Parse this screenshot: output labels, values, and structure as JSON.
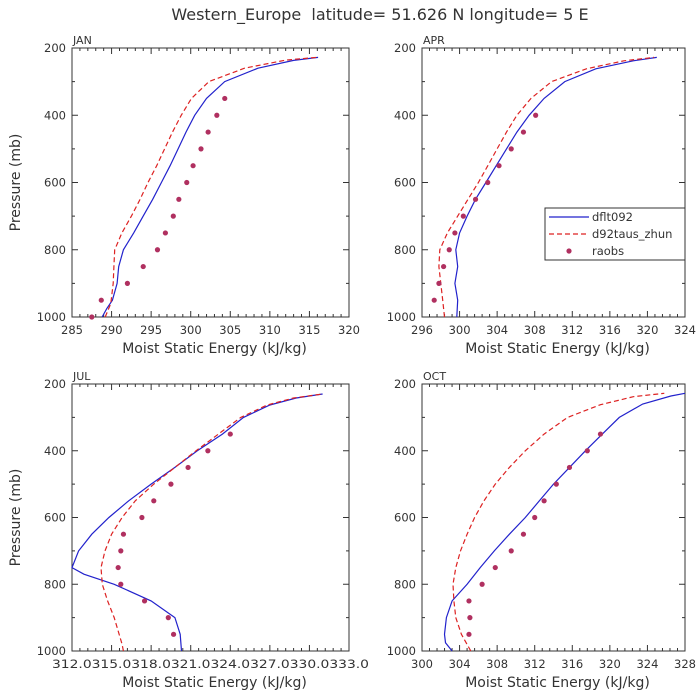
{
  "figure": {
    "title": "Western_Europe  latitude= 51.626 N longitude= 5 E"
  },
  "chart_data": [
    {
      "type": "line",
      "panel": "JAN",
      "xlabel": "Moist Static Energy (kJ/kg)",
      "ylabel": "Pressure (mb)",
      "xlim": [
        285,
        320
      ],
      "ylim": [
        1000,
        200
      ],
      "x_ticks": [
        "285",
        "290",
        "295",
        "300",
        "305",
        "310",
        "315",
        "320"
      ],
      "y_ticks": [
        "200",
        "400",
        "600",
        "800",
        "1000"
      ],
      "series": [
        {
          "name": "dflt092",
          "color": "#2222cc",
          "style": "solid",
          "points": [
            [
              288.8,
              1000
            ],
            [
              289.4,
              975
            ],
            [
              290.1,
              950
            ],
            [
              290.7,
              900
            ],
            [
              290.9,
              850
            ],
            [
              291.5,
              800
            ],
            [
              292.8,
              750
            ],
            [
              294.0,
              700
            ],
            [
              295.2,
              650
            ],
            [
              296.3,
              600
            ],
            [
              297.4,
              550
            ],
            [
              298.4,
              500
            ],
            [
              299.4,
              450
            ],
            [
              300.5,
              400
            ],
            [
              302.0,
              350
            ],
            [
              304.3,
              300
            ],
            [
              308.5,
              260
            ],
            [
              313.0,
              237
            ],
            [
              316.1,
              228
            ]
          ]
        },
        {
          "name": "d92taus_zhun",
          "color": "#dd2222",
          "style": "dashed",
          "points": [
            [
              289.2,
              1000
            ],
            [
              289.9,
              960
            ],
            [
              290.2,
              900
            ],
            [
              290.3,
              850
            ],
            [
              290.4,
              800
            ],
            [
              291.3,
              750
            ],
            [
              292.5,
              700
            ],
            [
              293.6,
              650
            ],
            [
              294.6,
              600
            ],
            [
              295.7,
              550
            ],
            [
              296.7,
              500
            ],
            [
              297.7,
              450
            ],
            [
              298.8,
              400
            ],
            [
              300.1,
              350
            ],
            [
              302.3,
              300
            ],
            [
              306.8,
              260
            ],
            [
              312.0,
              236
            ],
            [
              315.9,
              228
            ]
          ]
        }
      ],
      "raobs": {
        "name": "raobs",
        "color": "#b03060",
        "points": [
          [
            287.5,
            1000
          ],
          [
            288.7,
            950
          ],
          [
            292.0,
            900
          ],
          [
            294.0,
            850
          ],
          [
            295.8,
            800
          ],
          [
            296.8,
            750
          ],
          [
            297.8,
            700
          ],
          [
            298.5,
            650
          ],
          [
            299.5,
            600
          ],
          [
            300.3,
            550
          ],
          [
            301.3,
            500
          ],
          [
            302.2,
            450
          ],
          [
            303.3,
            400
          ],
          [
            304.3,
            350
          ]
        ]
      }
    },
    {
      "type": "line",
      "panel": "APR",
      "xlabel": "Moist Static Energy (kJ/kg)",
      "ylabel": "Pressure (mb)",
      "xlim": [
        296,
        324
      ],
      "ylim": [
        1000,
        200
      ],
      "x_ticks": [
        "296",
        "300",
        "304",
        "308",
        "312",
        "316",
        "320",
        "324"
      ],
      "y_ticks": [
        "200",
        "400",
        "600",
        "800",
        "1000"
      ],
      "legend": {
        "placement": "right",
        "entries": [
          "dflt092",
          "d92taus_zhun",
          "raobs"
        ]
      },
      "series": [
        {
          "name": "dflt092",
          "color": "#2222cc",
          "style": "solid",
          "points": [
            [
              299.7,
              1000
            ],
            [
              299.8,
              950
            ],
            [
              299.5,
              900
            ],
            [
              299.8,
              850
            ],
            [
              299.6,
              800
            ],
            [
              300.0,
              750
            ],
            [
              300.8,
              700
            ],
            [
              301.7,
              650
            ],
            [
              302.8,
              600
            ],
            [
              303.9,
              550
            ],
            [
              305.0,
              500
            ],
            [
              306.1,
              450
            ],
            [
              307.4,
              400
            ],
            [
              309.0,
              350
            ],
            [
              311.2,
              300
            ],
            [
              314.5,
              262
            ],
            [
              318.5,
              238
            ],
            [
              321.0,
              228
            ]
          ]
        },
        {
          "name": "d92taus_zhun",
          "color": "#dd2222",
          "style": "dashed",
          "points": [
            [
              298.4,
              1000
            ],
            [
              298.2,
              950
            ],
            [
              298.0,
              900
            ],
            [
              297.8,
              850
            ],
            [
              297.9,
              800
            ],
            [
              298.7,
              750
            ],
            [
              299.8,
              700
            ],
            [
              300.9,
              650
            ],
            [
              302.0,
              600
            ],
            [
              303.0,
              550
            ],
            [
              304.0,
              500
            ],
            [
              305.0,
              450
            ],
            [
              306.1,
              400
            ],
            [
              307.6,
              350
            ],
            [
              309.8,
              300
            ],
            [
              313.5,
              262
            ],
            [
              317.5,
              238
            ],
            [
              320.7,
              228
            ]
          ]
        }
      ],
      "raobs": {
        "name": "raobs",
        "color": "#b03060",
        "points": [
          [
            297.3,
            950
          ],
          [
            297.8,
            900
          ],
          [
            298.3,
            850
          ],
          [
            298.9,
            800
          ],
          [
            299.5,
            750
          ],
          [
            300.4,
            700
          ],
          [
            301.7,
            650
          ],
          [
            303.0,
            600
          ],
          [
            304.2,
            550
          ],
          [
            305.5,
            500
          ],
          [
            306.8,
            450
          ],
          [
            308.1,
            400
          ]
        ]
      }
    },
    {
      "type": "line",
      "panel": "JUL",
      "xlabel": "Moist Static Energy (kJ/kg)",
      "ylabel": "Pressure (mb)",
      "xlim": [
        312.0,
        333.0
      ],
      "ylim": [
        1000,
        200
      ],
      "x_ticks": [
        "312.0",
        "315.0",
        "318.0",
        "321.0",
        "324.0",
        "327.0",
        "330.0",
        "333.0"
      ],
      "x_tick_text": "312.0315.0318.0321.0324.0327.0330.0333.0",
      "y_ticks": [
        "200",
        "400",
        "600",
        "800",
        "1000"
      ],
      "series": [
        {
          "name": "dflt092",
          "color": "#2222cc",
          "style": "solid",
          "points": [
            [
              320.3,
              1000
            ],
            [
              320.2,
              950
            ],
            [
              319.8,
              900
            ],
            [
              318.0,
              850
            ],
            [
              315.2,
              800
            ],
            [
              312.9,
              770
            ],
            [
              312.0,
              750
            ],
            [
              312.5,
              700
            ],
            [
              313.5,
              650
            ],
            [
              314.8,
              600
            ],
            [
              316.3,
              550
            ],
            [
              318.0,
              500
            ],
            [
              319.8,
              450
            ],
            [
              321.5,
              400
            ],
            [
              323.4,
              350
            ],
            [
              325.0,
              300
            ],
            [
              327.0,
              263
            ],
            [
              329.0,
              242
            ],
            [
              331.0,
              230
            ]
          ]
        },
        {
          "name": "d92taus_zhun",
          "color": "#dd2222",
          "style": "dashed",
          "points": [
            [
              315.9,
              1000
            ],
            [
              315.8,
              980
            ],
            [
              315.2,
              900
            ],
            [
              314.7,
              850
            ],
            [
              314.3,
              800
            ],
            [
              314.2,
              750
            ],
            [
              314.5,
              700
            ],
            [
              315.0,
              650
            ],
            [
              315.8,
              600
            ],
            [
              316.8,
              550
            ],
            [
              318.2,
              500
            ],
            [
              319.8,
              450
            ],
            [
              321.4,
              400
            ],
            [
              323.1,
              350
            ],
            [
              324.8,
              300
            ],
            [
              326.8,
              263
            ],
            [
              328.8,
              242
            ],
            [
              331.0,
              230
            ]
          ]
        }
      ],
      "raobs": {
        "name": "raobs",
        "color": "#b03060",
        "points": [
          [
            319.7,
            950
          ],
          [
            319.3,
            900
          ],
          [
            317.5,
            850
          ],
          [
            315.7,
            800
          ],
          [
            315.5,
            750
          ],
          [
            315.7,
            700
          ],
          [
            315.9,
            650
          ],
          [
            317.3,
            600
          ],
          [
            318.2,
            550
          ],
          [
            319.5,
            500
          ],
          [
            320.8,
            450
          ],
          [
            322.3,
            400
          ],
          [
            324.0,
            350
          ]
        ]
      }
    },
    {
      "type": "line",
      "panel": "OCT",
      "xlabel": "Moist Static Energy (kJ/kg)",
      "ylabel": "Pressure (mb)",
      "xlim": [
        300,
        328
      ],
      "ylim": [
        1000,
        200
      ],
      "x_ticks": [
        "300",
        "304",
        "308",
        "312",
        "316",
        "320",
        "324",
        "328"
      ],
      "y_ticks": [
        "200",
        "400",
        "600",
        "800",
        "1000"
      ],
      "series": [
        {
          "name": "dflt092",
          "color": "#2222cc",
          "style": "solid",
          "points": [
            [
              303.2,
              1000
            ],
            [
              302.5,
              975
            ],
            [
              302.4,
              950
            ],
            [
              302.6,
              900
            ],
            [
              303.2,
              850
            ],
            [
              304.8,
              800
            ],
            [
              306.2,
              750
            ],
            [
              307.7,
              700
            ],
            [
              309.3,
              650
            ],
            [
              311.0,
              600
            ],
            [
              312.5,
              550
            ],
            [
              314.0,
              500
            ],
            [
              315.7,
              450
            ],
            [
              317.4,
              400
            ],
            [
              319.2,
              350
            ],
            [
              321.0,
              300
            ],
            [
              323.5,
              260
            ],
            [
              326.5,
              236
            ],
            [
              328.0,
              228
            ]
          ]
        },
        {
          "name": "d92taus_zhun",
          "color": "#dd2222",
          "style": "dashed",
          "points": [
            [
              305.2,
              1000
            ],
            [
              304.2,
              950
            ],
            [
              303.6,
              900
            ],
            [
              303.4,
              850
            ],
            [
              303.3,
              800
            ],
            [
              303.6,
              750
            ],
            [
              304.1,
              700
            ],
            [
              304.8,
              650
            ],
            [
              305.6,
              600
            ],
            [
              306.6,
              550
            ],
            [
              307.8,
              500
            ],
            [
              309.3,
              450
            ],
            [
              311.0,
              400
            ],
            [
              313.0,
              350
            ],
            [
              315.5,
              300
            ],
            [
              319.0,
              262
            ],
            [
              322.5,
              238
            ],
            [
              325.8,
              228
            ]
          ]
        }
      ],
      "raobs": {
        "name": "raobs",
        "color": "#b03060",
        "points": [
          [
            305.0,
            950
          ],
          [
            305.1,
            900
          ],
          [
            305.0,
            850
          ],
          [
            306.4,
            800
          ],
          [
            307.8,
            750
          ],
          [
            309.5,
            700
          ],
          [
            310.8,
            650
          ],
          [
            312.0,
            600
          ],
          [
            313.0,
            550
          ],
          [
            314.3,
            500
          ],
          [
            315.7,
            450
          ],
          [
            317.6,
            400
          ],
          [
            319.0,
            350
          ]
        ]
      }
    }
  ]
}
